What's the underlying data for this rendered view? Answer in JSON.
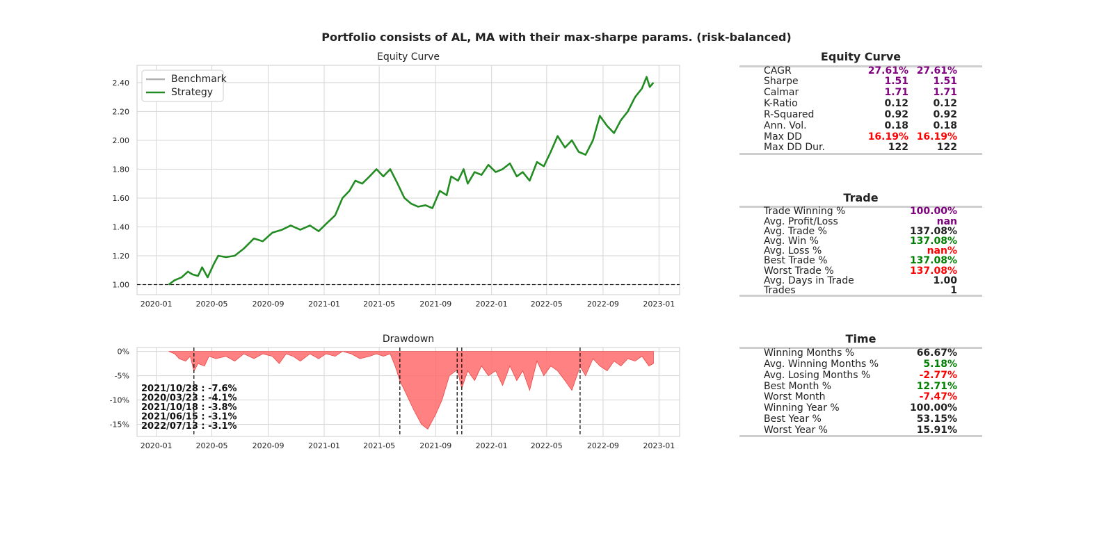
{
  "suptitle": "Portfolio consists of AL, MA with their max-sharpe params. (risk-balanced)",
  "colors": {
    "strategy": "#228b22",
    "benchmark": "#b0b0b0",
    "drawdown_fill": "#ff6b6b",
    "purple": "#800080",
    "red": "#ff0000",
    "green": "#008000",
    "black": "#222222"
  },
  "chart_data": [
    {
      "type": "line",
      "title": "Equity Curve",
      "x_ticks": [
        "2020-01",
        "2020-05",
        "2020-09",
        "2021-01",
        "2021-05",
        "2021-09",
        "2022-01",
        "2022-05",
        "2022-09",
        "2023-01"
      ],
      "y_ticks": [
        "1.00",
        "1.20",
        "1.40",
        "1.60",
        "1.80",
        "2.00",
        "2.20",
        "2.40"
      ],
      "xlim": [
        "2019-11-20",
        "2023-02-15"
      ],
      "ylim": [
        0.93,
        2.52
      ],
      "legend": {
        "position": "upper-left",
        "entries": [
          "Benchmark",
          "Strategy"
        ]
      },
      "reference_line": 1.0,
      "grid": true,
      "series": [
        {
          "name": "Benchmark",
          "x": [],
          "y": []
        },
        {
          "name": "Strategy",
          "x": [
            "2020-01-28",
            "2020-02-10",
            "2020-02-25",
            "2020-03-10",
            "2020-03-20",
            "2020-04-01",
            "2020-04-10",
            "2020-04-22",
            "2020-05-05",
            "2020-05-15",
            "2020-06-01",
            "2020-06-20",
            "2020-07-10",
            "2020-08-01",
            "2020-08-20",
            "2020-09-10",
            "2020-10-01",
            "2020-10-20",
            "2020-11-10",
            "2020-12-01",
            "2020-12-20",
            "2021-01-05",
            "2021-01-25",
            "2021-02-10",
            "2021-02-25",
            "2021-03-10",
            "2021-03-25",
            "2021-04-10",
            "2021-04-25",
            "2021-05-10",
            "2021-05-25",
            "2021-06-10",
            "2021-06-25",
            "2021-07-10",
            "2021-07-25",
            "2021-08-10",
            "2021-08-25",
            "2021-09-10",
            "2021-09-25",
            "2021-10-05",
            "2021-10-20",
            "2021-11-01",
            "2021-11-10",
            "2021-11-25",
            "2021-12-10",
            "2021-12-25",
            "2022-01-10",
            "2022-01-25",
            "2022-02-10",
            "2022-02-25",
            "2022-03-10",
            "2022-03-25",
            "2022-04-10",
            "2022-04-25",
            "2022-05-10",
            "2022-05-25",
            "2022-06-10",
            "2022-06-25",
            "2022-07-10",
            "2022-07-25",
            "2022-08-10",
            "2022-08-25",
            "2022-09-10",
            "2022-09-25",
            "2022-10-10",
            "2022-10-25",
            "2022-11-10",
            "2022-11-25",
            "2022-12-05",
            "2022-12-12",
            "2022-12-20"
          ],
          "y": [
            1.0,
            1.03,
            1.05,
            1.09,
            1.07,
            1.06,
            1.12,
            1.05,
            1.14,
            1.2,
            1.19,
            1.2,
            1.25,
            1.32,
            1.3,
            1.36,
            1.38,
            1.41,
            1.38,
            1.41,
            1.37,
            1.42,
            1.48,
            1.6,
            1.65,
            1.72,
            1.7,
            1.75,
            1.8,
            1.75,
            1.8,
            1.7,
            1.6,
            1.56,
            1.54,
            1.55,
            1.53,
            1.65,
            1.62,
            1.75,
            1.72,
            1.8,
            1.7,
            1.78,
            1.76,
            1.83,
            1.78,
            1.8,
            1.84,
            1.75,
            1.78,
            1.72,
            1.85,
            1.82,
            1.92,
            2.03,
            1.95,
            2.0,
            1.92,
            1.9,
            2.0,
            2.17,
            2.1,
            2.05,
            2.14,
            2.2,
            2.3,
            2.36,
            2.44,
            2.37,
            2.4
          ]
        }
      ]
    },
    {
      "type": "area",
      "title": "Drawdown",
      "x_ticks": [
        "2020-01",
        "2020-05",
        "2020-09",
        "2021-01",
        "2021-05",
        "2021-09",
        "2022-01",
        "2022-05",
        "2022-09",
        "2023-01"
      ],
      "y_ticks": [
        "0%",
        "-5%",
        "-10%",
        "-15%"
      ],
      "xlim": [
        "2019-11-20",
        "2023-02-15"
      ],
      "ylim": [
        -17.5,
        0.8
      ],
      "grid": true,
      "x": [
        "2020-01-28",
        "2020-02-10",
        "2020-02-20",
        "2020-03-05",
        "2020-03-15",
        "2020-03-23",
        "2020-04-01",
        "2020-04-15",
        "2020-04-25",
        "2020-05-10",
        "2020-06-01",
        "2020-06-20",
        "2020-07-10",
        "2020-08-01",
        "2020-08-20",
        "2020-09-10",
        "2020-09-25",
        "2020-10-10",
        "2020-10-25",
        "2020-11-10",
        "2020-12-01",
        "2020-12-20",
        "2021-01-05",
        "2021-01-25",
        "2021-02-10",
        "2021-03-01",
        "2021-03-20",
        "2021-04-10",
        "2021-04-25",
        "2021-05-10",
        "2021-05-25",
        "2021-06-05",
        "2021-06-15",
        "2021-06-30",
        "2021-07-15",
        "2021-08-01",
        "2021-08-15",
        "2021-09-01",
        "2021-09-15",
        "2021-10-01",
        "2021-10-18",
        "2021-10-28",
        "2021-11-10",
        "2021-11-25",
        "2021-12-10",
        "2021-12-25",
        "2022-01-10",
        "2022-01-25",
        "2022-02-10",
        "2022-02-25",
        "2022-03-10",
        "2022-03-25",
        "2022-04-10",
        "2022-04-25",
        "2022-05-10",
        "2022-05-25",
        "2022-06-10",
        "2022-06-25",
        "2022-07-13",
        "2022-07-25",
        "2022-08-10",
        "2022-08-25",
        "2022-09-10",
        "2022-09-25",
        "2022-10-10",
        "2022-10-25",
        "2022-11-10",
        "2022-11-25",
        "2022-12-10",
        "2022-12-20"
      ],
      "values": [
        0,
        -0.5,
        -1.5,
        -2,
        -1,
        -4.1,
        -2.5,
        -3,
        -1,
        -1.5,
        -1,
        -2,
        -0.5,
        -1.5,
        -0.5,
        -1,
        -2.5,
        -0.5,
        -1,
        -2,
        -0.5,
        -1.5,
        -0.5,
        -1,
        0,
        -0.5,
        -1.5,
        -1,
        -0.5,
        -1,
        -0.5,
        -3.1,
        -6,
        -9,
        -12,
        -15,
        -16,
        -13,
        -10,
        -5,
        -3.8,
        -7.6,
        -4,
        -6,
        -3,
        -5,
        -4,
        -7,
        -3,
        -6,
        -4,
        -8,
        -2,
        -5,
        -3,
        -4,
        -6,
        -8,
        -3.1,
        -5,
        -1.5,
        -3,
        -4,
        -2,
        -3,
        -1.5,
        -2,
        -1,
        -3,
        -2.5
      ],
      "marker_dates": [
        "2021/10/28",
        "2020/03/23",
        "2021/10/18",
        "2021/06/15",
        "2022/07/13"
      ],
      "annotations": [
        {
          "date": "2021/10/28",
          "value": "-7.6%",
          "label": "2021/10/28 : -7.6%"
        },
        {
          "date": "2020/03/23",
          "value": "-4.1%",
          "label": "2020/03/23 : -4.1%"
        },
        {
          "date": "2021/10/18",
          "value": "-3.8%",
          "label": "2021/10/18 : -3.8%"
        },
        {
          "date": "2021/06/15",
          "value": "-3.1%",
          "label": "2021/06/15 : -3.1%"
        },
        {
          "date": "2022/07/13",
          "value": "-3.1%",
          "label": "2022/07/13 : -3.1%"
        }
      ]
    }
  ],
  "tables": [
    {
      "title": "Equity Curve",
      "two_columns": true,
      "rows": [
        {
          "label": "CAGR",
          "v1": "27.61%",
          "v2": "27.61%",
          "color": "purple"
        },
        {
          "label": "Sharpe",
          "v1": "1.51",
          "v2": "1.51",
          "color": "purple"
        },
        {
          "label": "Calmar",
          "v1": "1.71",
          "v2": "1.71",
          "color": "purple"
        },
        {
          "label": "K-Ratio",
          "v1": "0.12",
          "v2": "0.12",
          "color": "black"
        },
        {
          "label": "R-Squared",
          "v1": "0.92",
          "v2": "0.92",
          "color": "black"
        },
        {
          "label": "Ann. Vol.",
          "v1": "0.18",
          "v2": "0.18",
          "color": "black"
        },
        {
          "label": "Max DD",
          "v1": "16.19%",
          "v2": "16.19%",
          "color": "red"
        },
        {
          "label": "Max DD Dur.",
          "v1": "122",
          "v2": "122",
          "color": "black"
        }
      ]
    },
    {
      "title": "Trade",
      "two_columns": false,
      "rows": [
        {
          "label": "Trade Winning %",
          "v2": "100.00%",
          "color": "purple"
        },
        {
          "label": "Avg. Profit/Loss",
          "v2": "nan",
          "color": "purple"
        },
        {
          "label": "Avg. Trade %",
          "v2": "137.08%",
          "color": "black"
        },
        {
          "label": "Avg. Win %",
          "v2": "137.08%",
          "color": "green"
        },
        {
          "label": "Avg. Loss %",
          "v2": "nan%",
          "color": "red"
        },
        {
          "label": "Best Trade %",
          "v2": "137.08%",
          "color": "green"
        },
        {
          "label": "Worst Trade %",
          "v2": "137.08%",
          "color": "red"
        },
        {
          "label": "Avg. Days in Trade",
          "v2": "1.00",
          "color": "black"
        },
        {
          "label": "Trades",
          "v2": "1",
          "color": "black"
        }
      ]
    },
    {
      "title": "Time",
      "two_columns": false,
      "rows": [
        {
          "label": "Winning Months %",
          "v2": "66.67%",
          "color": "black"
        },
        {
          "label": "Avg. Winning Months %",
          "v2": "5.18%",
          "color": "green"
        },
        {
          "label": "Avg. Losing Months %",
          "v2": "-2.77%",
          "color": "red"
        },
        {
          "label": "Best Month %",
          "v2": "12.71%",
          "color": "green"
        },
        {
          "label": "Worst Month",
          "v2": "-7.47%",
          "color": "red"
        },
        {
          "label": "Winning Year %",
          "v2": "100.00%",
          "color": "black"
        },
        {
          "label": "Best Year %",
          "v2": "53.15%",
          "color": "black"
        },
        {
          "label": "Worst Year %",
          "v2": "15.91%",
          "color": "black"
        }
      ]
    }
  ]
}
